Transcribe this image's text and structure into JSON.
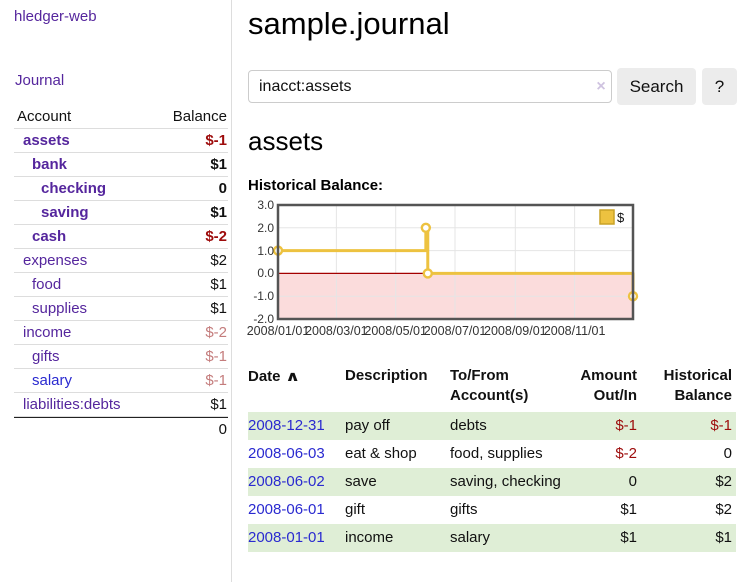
{
  "colors": {
    "link_purple": "#55269d",
    "link_blue": "#2a2ad0",
    "negative_strong": "#9d0b0b",
    "negative_soft": "#c47c7c",
    "row_green": "#dfeed6",
    "series_gold": "#edc240",
    "chart_negative_fill": "#fbdcdc",
    "zero_line": "#a40000",
    "grid": "#e5e5e5",
    "chart_border": "#545454"
  },
  "sidebar": {
    "app_title": "hledger-web",
    "nav_journal": "Journal",
    "table": {
      "headers": {
        "account": "Account",
        "balance": "Balance"
      },
      "rows": [
        {
          "name": "assets",
          "balance": "$-1",
          "indent": 1,
          "bold": true,
          "neg": "strong"
        },
        {
          "name": "bank",
          "balance": "$1",
          "indent": 2,
          "bold": true,
          "neg": "none"
        },
        {
          "name": "checking",
          "balance": "0",
          "indent": 3,
          "bold": true,
          "neg": "none"
        },
        {
          "name": "saving",
          "balance": "$1",
          "indent": 3,
          "bold": true,
          "neg": "none"
        },
        {
          "name": "cash",
          "balance": "$-2",
          "indent": 2,
          "bold": true,
          "neg": "strong"
        },
        {
          "name": "expenses",
          "balance": "$2",
          "indent": 1,
          "bold": false,
          "neg": "none"
        },
        {
          "name": "food",
          "balance": "$1",
          "indent": 2,
          "bold": false,
          "neg": "none"
        },
        {
          "name": "supplies",
          "balance": "$1",
          "indent": 2,
          "bold": false,
          "neg": "none"
        },
        {
          "name": "income",
          "balance": "$-2",
          "indent": 1,
          "bold": false,
          "neg": "soft"
        },
        {
          "name": "gifts",
          "balance": "$-1",
          "indent": 2,
          "bold": false,
          "neg": "soft"
        },
        {
          "name": "salary",
          "balance": "$-1",
          "indent": 2,
          "bold": false,
          "neg": "soft",
          "link_color": "blue"
        },
        {
          "name": "liabilities:debts",
          "balance": "$1",
          "indent": 1,
          "bold": false,
          "neg": "none"
        }
      ],
      "total": "0"
    }
  },
  "header": {
    "title": "sample.journal"
  },
  "search": {
    "value": "inacct:assets",
    "clear_icon": "×",
    "button_label": "Search",
    "help_label": "?"
  },
  "account_page": {
    "heading": "assets",
    "chart_title": "Historical Balance:"
  },
  "chart_data": {
    "type": "line",
    "step": true,
    "title": "Historical Balance:",
    "legend": {
      "label": "$",
      "position": "top-right"
    },
    "ylim": [
      -2,
      3
    ],
    "yticks": [
      3.0,
      2.0,
      1.0,
      0.0,
      -1.0,
      -2.0
    ],
    "xlim_days": [
      0,
      365
    ],
    "xticks": [
      {
        "label": "2008/01/01",
        "day": 0
      },
      {
        "label": "2008/03/01",
        "day": 60
      },
      {
        "label": "2008/05/01",
        "day": 121
      },
      {
        "label": "2008/07/01",
        "day": 182
      },
      {
        "label": "2008/09/01",
        "day": 244
      },
      {
        "label": "2008/11/01",
        "day": 305
      }
    ],
    "series": [
      {
        "name": "$",
        "color": "#edc240",
        "points": [
          {
            "date": "2008-01-01",
            "day": 0,
            "value": 1
          },
          {
            "date": "2008-06-01",
            "day": 152,
            "value": 2
          },
          {
            "date": "2008-06-03",
            "day": 154,
            "value": 0
          },
          {
            "date": "2008-12-31",
            "day": 365,
            "value": -1
          }
        ]
      }
    ],
    "grid": true,
    "negative_region_shaded": true
  },
  "register": {
    "headers": {
      "date": "Date",
      "sort_icon": "∧",
      "description": "Description",
      "accounts": "To/From\nAccount(s)",
      "amount": "Amount\nOut/In",
      "balance": "Historical\nBalance"
    },
    "rows": [
      {
        "date": "2008-12-31",
        "description": "pay off",
        "accounts": "debts",
        "amount": "$-1",
        "amount_neg": true,
        "balance": "$-1",
        "balance_neg": true,
        "shaded": true
      },
      {
        "date": "2008-06-03",
        "description": "eat & shop",
        "accounts": "food, supplies",
        "amount": "$-2",
        "amount_neg": true,
        "balance": "0",
        "balance_neg": false,
        "shaded": false
      },
      {
        "date": "2008-06-02",
        "description": "save",
        "accounts": "saving, checking",
        "amount": "0",
        "amount_neg": false,
        "balance": "$2",
        "balance_neg": false,
        "shaded": true
      },
      {
        "date": "2008-06-01",
        "description": "gift",
        "accounts": "gifts",
        "amount": "$1",
        "amount_neg": false,
        "balance": "$2",
        "balance_neg": false,
        "shaded": false
      },
      {
        "date": "2008-01-01",
        "description": "income",
        "accounts": "salary",
        "amount": "$1",
        "amount_neg": false,
        "balance": "$1",
        "balance_neg": false,
        "shaded": true
      }
    ]
  }
}
